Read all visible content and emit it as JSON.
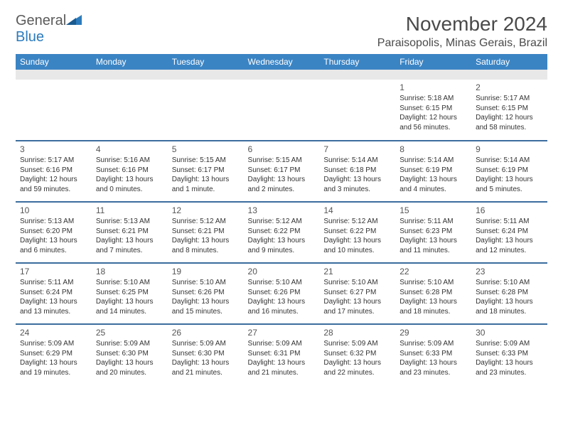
{
  "logo": {
    "text1": "General",
    "text2": "Blue"
  },
  "title": "November 2024",
  "location": "Paraisopolis, Minas Gerais, Brazil",
  "colors": {
    "header_bg": "#3b84c4",
    "header_text": "#ffffff",
    "row_border": "#3b6d9e",
    "subheader_bg": "#e8e8e8",
    "logo_gray": "#5a5a5a",
    "logo_blue": "#2b7bbd",
    "text": "#333333",
    "title_color": "#4a4a4a"
  },
  "font": {
    "title_size": 28,
    "location_size": 16,
    "header_size": 12,
    "cell_size": 10,
    "daynum_size": 12
  },
  "columns": [
    "Sunday",
    "Monday",
    "Tuesday",
    "Wednesday",
    "Thursday",
    "Friday",
    "Saturday"
  ],
  "weeks": [
    [
      null,
      null,
      null,
      null,
      null,
      {
        "n": "1",
        "sr": "Sunrise: 5:18 AM",
        "ss": "Sunset: 6:15 PM",
        "d1": "Daylight: 12 hours",
        "d2": "and 56 minutes."
      },
      {
        "n": "2",
        "sr": "Sunrise: 5:17 AM",
        "ss": "Sunset: 6:15 PM",
        "d1": "Daylight: 12 hours",
        "d2": "and 58 minutes."
      }
    ],
    [
      {
        "n": "3",
        "sr": "Sunrise: 5:17 AM",
        "ss": "Sunset: 6:16 PM",
        "d1": "Daylight: 12 hours",
        "d2": "and 59 minutes."
      },
      {
        "n": "4",
        "sr": "Sunrise: 5:16 AM",
        "ss": "Sunset: 6:16 PM",
        "d1": "Daylight: 13 hours",
        "d2": "and 0 minutes."
      },
      {
        "n": "5",
        "sr": "Sunrise: 5:15 AM",
        "ss": "Sunset: 6:17 PM",
        "d1": "Daylight: 13 hours",
        "d2": "and 1 minute."
      },
      {
        "n": "6",
        "sr": "Sunrise: 5:15 AM",
        "ss": "Sunset: 6:17 PM",
        "d1": "Daylight: 13 hours",
        "d2": "and 2 minutes."
      },
      {
        "n": "7",
        "sr": "Sunrise: 5:14 AM",
        "ss": "Sunset: 6:18 PM",
        "d1": "Daylight: 13 hours",
        "d2": "and 3 minutes."
      },
      {
        "n": "8",
        "sr": "Sunrise: 5:14 AM",
        "ss": "Sunset: 6:19 PM",
        "d1": "Daylight: 13 hours",
        "d2": "and 4 minutes."
      },
      {
        "n": "9",
        "sr": "Sunrise: 5:14 AM",
        "ss": "Sunset: 6:19 PM",
        "d1": "Daylight: 13 hours",
        "d2": "and 5 minutes."
      }
    ],
    [
      {
        "n": "10",
        "sr": "Sunrise: 5:13 AM",
        "ss": "Sunset: 6:20 PM",
        "d1": "Daylight: 13 hours",
        "d2": "and 6 minutes."
      },
      {
        "n": "11",
        "sr": "Sunrise: 5:13 AM",
        "ss": "Sunset: 6:21 PM",
        "d1": "Daylight: 13 hours",
        "d2": "and 7 minutes."
      },
      {
        "n": "12",
        "sr": "Sunrise: 5:12 AM",
        "ss": "Sunset: 6:21 PM",
        "d1": "Daylight: 13 hours",
        "d2": "and 8 minutes."
      },
      {
        "n": "13",
        "sr": "Sunrise: 5:12 AM",
        "ss": "Sunset: 6:22 PM",
        "d1": "Daylight: 13 hours",
        "d2": "and 9 minutes."
      },
      {
        "n": "14",
        "sr": "Sunrise: 5:12 AM",
        "ss": "Sunset: 6:22 PM",
        "d1": "Daylight: 13 hours",
        "d2": "and 10 minutes."
      },
      {
        "n": "15",
        "sr": "Sunrise: 5:11 AM",
        "ss": "Sunset: 6:23 PM",
        "d1": "Daylight: 13 hours",
        "d2": "and 11 minutes."
      },
      {
        "n": "16",
        "sr": "Sunrise: 5:11 AM",
        "ss": "Sunset: 6:24 PM",
        "d1": "Daylight: 13 hours",
        "d2": "and 12 minutes."
      }
    ],
    [
      {
        "n": "17",
        "sr": "Sunrise: 5:11 AM",
        "ss": "Sunset: 6:24 PM",
        "d1": "Daylight: 13 hours",
        "d2": "and 13 minutes."
      },
      {
        "n": "18",
        "sr": "Sunrise: 5:10 AM",
        "ss": "Sunset: 6:25 PM",
        "d1": "Daylight: 13 hours",
        "d2": "and 14 minutes."
      },
      {
        "n": "19",
        "sr": "Sunrise: 5:10 AM",
        "ss": "Sunset: 6:26 PM",
        "d1": "Daylight: 13 hours",
        "d2": "and 15 minutes."
      },
      {
        "n": "20",
        "sr": "Sunrise: 5:10 AM",
        "ss": "Sunset: 6:26 PM",
        "d1": "Daylight: 13 hours",
        "d2": "and 16 minutes."
      },
      {
        "n": "21",
        "sr": "Sunrise: 5:10 AM",
        "ss": "Sunset: 6:27 PM",
        "d1": "Daylight: 13 hours",
        "d2": "and 17 minutes."
      },
      {
        "n": "22",
        "sr": "Sunrise: 5:10 AM",
        "ss": "Sunset: 6:28 PM",
        "d1": "Daylight: 13 hours",
        "d2": "and 18 minutes."
      },
      {
        "n": "23",
        "sr": "Sunrise: 5:10 AM",
        "ss": "Sunset: 6:28 PM",
        "d1": "Daylight: 13 hours",
        "d2": "and 18 minutes."
      }
    ],
    [
      {
        "n": "24",
        "sr": "Sunrise: 5:09 AM",
        "ss": "Sunset: 6:29 PM",
        "d1": "Daylight: 13 hours",
        "d2": "and 19 minutes."
      },
      {
        "n": "25",
        "sr": "Sunrise: 5:09 AM",
        "ss": "Sunset: 6:30 PM",
        "d1": "Daylight: 13 hours",
        "d2": "and 20 minutes."
      },
      {
        "n": "26",
        "sr": "Sunrise: 5:09 AM",
        "ss": "Sunset: 6:30 PM",
        "d1": "Daylight: 13 hours",
        "d2": "and 21 minutes."
      },
      {
        "n": "27",
        "sr": "Sunrise: 5:09 AM",
        "ss": "Sunset: 6:31 PM",
        "d1": "Daylight: 13 hours",
        "d2": "and 21 minutes."
      },
      {
        "n": "28",
        "sr": "Sunrise: 5:09 AM",
        "ss": "Sunset: 6:32 PM",
        "d1": "Daylight: 13 hours",
        "d2": "and 22 minutes."
      },
      {
        "n": "29",
        "sr": "Sunrise: 5:09 AM",
        "ss": "Sunset: 6:33 PM",
        "d1": "Daylight: 13 hours",
        "d2": "and 23 minutes."
      },
      {
        "n": "30",
        "sr": "Sunrise: 5:09 AM",
        "ss": "Sunset: 6:33 PM",
        "d1": "Daylight: 13 hours",
        "d2": "and 23 minutes."
      }
    ]
  ]
}
